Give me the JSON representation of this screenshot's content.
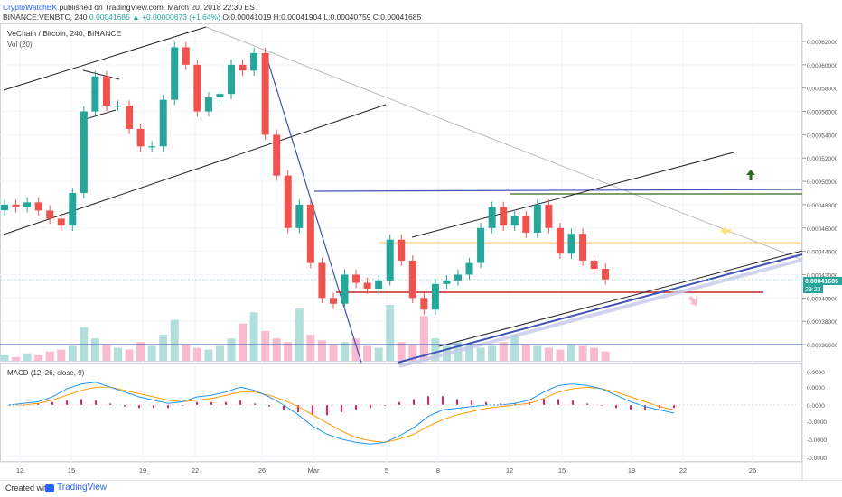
{
  "header": {
    "author": "CryptoWatchBK",
    "published_text": "published on TradingView.com, March 20, 2018 22:30 EST",
    "symbol_line": "BINANCE:VENBTC, 240",
    "last": "0.00041685",
    "change": "+0.00000673 (+1.64%)",
    "open": "O:0.00041019",
    "high": "H:0.00041904",
    "low": "L:0.00040759",
    "close": "C:0.00041685"
  },
  "legend": {
    "title": "VeChain / Bitcoin, 240, BINANCE",
    "volume": "Vol (20)"
  },
  "macd_label": "MACD (12, 26, close, 9)",
  "footer": {
    "created": "Created with",
    "brand": "TradingView"
  },
  "colors": {
    "up": "#26a69a",
    "down": "#ef5350",
    "macd": "#2196f3",
    "signal": "#ff9800",
    "hist_neg": "#e91e63",
    "accent": "#2962ff"
  },
  "chart_data": [
    {
      "type": "candlestick",
      "title": "VeChain / Bitcoin, 240, BINANCE",
      "x_tick_labels": [
        "12",
        "15",
        "19",
        "22",
        "26",
        "Mar",
        "5",
        "8",
        "12",
        "15",
        "19",
        "22",
        "26"
      ],
      "y_tick_labels": [
        "0.00062000",
        "0.00060000",
        "0.00058000",
        "0.00056000",
        "0.00054000",
        "0.00052000",
        "0.00050000",
        "0.00048000",
        "0.00046000",
        "0.00044000",
        "0.00042000",
        "0.00040000",
        "0.00038000",
        "0.00036000"
      ],
      "ylim": [
        0.000349,
        0.000631
      ],
      "last_price": "0.00041685",
      "countdown": "29:23",
      "series": [
        {
          "values": [
            [
              0,
              0.00048
            ],
            [
              2,
              0.000478
            ],
            [
              3,
              0.000482
            ],
            [
              4,
              0.000475
            ],
            [
              5,
              0.000468
            ],
            [
              7,
              0.000462
            ],
            [
              9,
              0.00049
            ],
            [
              11,
              0.00056
            ],
            [
              13,
              0.00059
            ],
            [
              14,
              0.000565
            ],
            [
              15,
              0.000565
            ],
            [
              16,
              0.000545
            ],
            [
              17,
              0.00053
            ],
            [
              18,
              0.00053
            ],
            [
              19,
              0.00057
            ],
            [
              20,
              0.000615
            ],
            [
              21,
              0.0006
            ],
            [
              22,
              0.00056
            ],
            [
              23,
              0.000572
            ],
            [
              24,
              0.000575
            ],
            [
              25,
              0.0006
            ],
            [
              26,
              0.000595
            ],
            [
              27,
              0.00061
            ],
            [
              28,
              0.00054
            ],
            [
              29,
              0.000505
            ],
            [
              30,
              0.00046
            ],
            [
              31,
              0.00048
            ],
            [
              32,
              0.00043
            ],
            [
              33,
              0.0004
            ],
            [
              34,
              0.000395
            ],
            [
              35,
              0.00042
            ],
            [
              36,
              0.000413
            ],
            [
              37,
              0.000408
            ],
            [
              38,
              0.000415
            ],
            [
              39,
              0.00045
            ],
            [
              40,
              0.000432
            ],
            [
              41,
              0.0004
            ],
            [
              42,
              0.00039
            ],
            [
              43,
              0.000412
            ],
            [
              44,
              0.000415
            ],
            [
              45,
              0.00042
            ],
            [
              46,
              0.00043
            ],
            [
              47,
              0.00046
            ],
            [
              48,
              0.000478
            ],
            [
              49,
              0.000462
            ],
            [
              50,
              0.00047
            ],
            [
              51,
              0.000456
            ],
            [
              52,
              0.00048
            ],
            [
              53,
              0.00046
            ],
            [
              54,
              0.000438
            ],
            [
              55,
              0.000455
            ],
            [
              56,
              0.000432
            ],
            [
              57,
              0.000425
            ],
            [
              58,
              0.000416
            ]
          ]
        }
      ]
    },
    {
      "type": "bar",
      "title": "Vol (20)",
      "series": [
        {
          "values": [
            3,
            2,
            4,
            3,
            5,
            6,
            8,
            18,
            12,
            9,
            7,
            6,
            10,
            8,
            14,
            22,
            9,
            7,
            6,
            8,
            12,
            20,
            26,
            16,
            12,
            10,
            28,
            14,
            11,
            9,
            10,
            12,
            8,
            7,
            30,
            10,
            9,
            24,
            12,
            8,
            10,
            9,
            7,
            8,
            10,
            14,
            9,
            8,
            7,
            6,
            9,
            8,
            7,
            5,
            6,
            5,
            4,
            3
          ]
        }
      ]
    },
    {
      "type": "line",
      "title": "MACD (12, 26, close, 9)",
      "y_tick_labels": [
        "0.0000",
        "0.0000",
        "0.0000",
        "-0.0000",
        "-0.0000",
        "-0.0000"
      ],
      "series": [
        {
          "values": [
            0.0,
            0.1,
            0.2,
            0.5,
            1.0,
            1.3,
            1.4,
            1.1,
            0.8,
            0.5,
            0.3,
            0.1,
            0.2,
            0.5,
            0.6,
            0.8,
            1.1,
            0.9,
            0.5,
            0.0,
            -0.6,
            -1.3,
            -1.8,
            -2.1,
            -2.3,
            -2.4,
            -2.3,
            -1.9,
            -1.4,
            -0.7,
            -0.3,
            -0.2,
            -0.1,
            0.0,
            0.0,
            0.1,
            0.3,
            0.8,
            1.2,
            1.3,
            1.2,
            1.0,
            0.6,
            0.2,
            -0.1,
            -0.3,
            -0.5
          ]
        },
        {
          "values": [
            0.0,
            0.0,
            0.1,
            0.3,
            0.6,
            0.9,
            1.1,
            1.1,
            0.9,
            0.7,
            0.5,
            0.3,
            0.2,
            0.3,
            0.4,
            0.6,
            0.8,
            0.8,
            0.6,
            0.3,
            -0.1,
            -0.6,
            -1.1,
            -1.6,
            -2.0,
            -2.2,
            -2.3,
            -2.1,
            -1.8,
            -1.3,
            -0.9,
            -0.6,
            -0.4,
            -0.2,
            -0.1,
            0.0,
            0.1,
            0.4,
            0.8,
            1.0,
            1.1,
            1.0,
            0.8,
            0.5,
            0.2,
            -0.1,
            -0.3
          ]
        },
        {
          "values": [
            0.0,
            0.0,
            0.1,
            0.2,
            0.3,
            0.4,
            0.3,
            0.1,
            -0.1,
            -0.2,
            -0.2,
            -0.2,
            0.0,
            0.2,
            0.2,
            0.2,
            0.3,
            0.1,
            -0.1,
            -0.3,
            -0.5,
            -0.7,
            -0.7,
            -0.5,
            -0.3,
            -0.2,
            0.0,
            0.2,
            0.4,
            0.6,
            0.6,
            0.4,
            0.3,
            0.2,
            0.1,
            0.1,
            0.2,
            0.4,
            0.4,
            0.3,
            0.1,
            0.0,
            -0.2,
            -0.3,
            -0.3,
            -0.2,
            -0.2
          ]
        }
      ]
    }
  ]
}
